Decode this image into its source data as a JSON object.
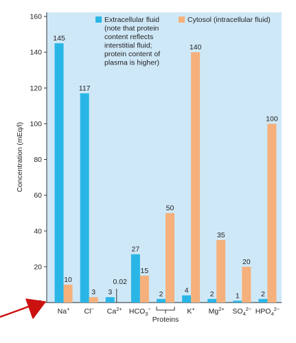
{
  "colors": {
    "plot_bg": "#cfe8f7",
    "extracellular": "#29b6e6",
    "cytosol": "#f5b07c",
    "axis": "#333333",
    "annotation_arrow": "#cc1111"
  },
  "chart_data": {
    "type": "bar",
    "ylabel": "Concentration (mEq/l)",
    "ylim": [
      0,
      160
    ],
    "yticks": [
      0,
      20,
      40,
      60,
      80,
      100,
      120,
      140,
      160
    ],
    "categories": [
      "Na+",
      "Cl−",
      "Ca2+",
      "HCO3−",
      "Proteins",
      "K+",
      "Mg2+",
      "SO42−",
      "HPO42−"
    ],
    "series": [
      {
        "name": "Extracellular fluid (note that protein content reflects interstitial fluid; protein content of plasma is higher)",
        "values": [
          145,
          117,
          3,
          27,
          2,
          4,
          2,
          1,
          2
        ]
      },
      {
        "name": "Cytosol (intracellular fluid)",
        "values": [
          10,
          3,
          0.02,
          15,
          50,
          140,
          35,
          20,
          100
        ]
      }
    ],
    "data_labels": {
      "extracellular": [
        "145",
        "117",
        "3",
        "27",
        "2",
        "4",
        "2",
        "1",
        "2"
      ],
      "cytosol": [
        "10",
        "3",
        "0.02",
        "15",
        "50",
        "140",
        "35",
        "20",
        "100"
      ]
    },
    "legend": {
      "position": "top",
      "extracellular_lines": [
        "Extracellular fluid",
        "(note that protein",
        "content reflects",
        "interstitial fluid;",
        "protein content of",
        "plasma is higher)"
      ],
      "cytosol_lines": [
        "Cytosol (intracellular fluid)"
      ]
    },
    "grid": false
  }
}
